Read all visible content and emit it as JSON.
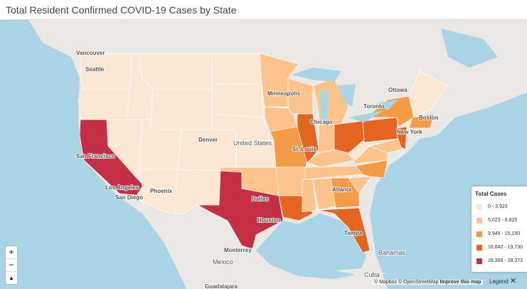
{
  "title": "Total Resident Confirmed COVID-19 Cases by State",
  "places": [
    "Vancouver",
    "Seattle",
    "Minneapolis",
    "Ottawa",
    "Toronto",
    "Boston",
    "Chicago",
    "New York",
    "St. Louis",
    "United States",
    "Denver",
    "San Francisco",
    "Los Angeles",
    "San Diego",
    "Phoenix",
    "Dallas",
    "Houston",
    "Atlanta",
    "Tampa",
    "Monterrey",
    "Mexico",
    "Bahamas",
    "Cuba",
    "Guadalajara"
  ],
  "legend": {
    "title": "Total Cases",
    "items": [
      {
        "label": "0 - 3,923",
        "color": "#fbe7d4"
      },
      {
        "label": "5,023 - 8,825",
        "color": "#fcc38a"
      },
      {
        "label": "9,949 - 15,150",
        "color": "#f59a45"
      },
      {
        "label": "16,842 - 19,730",
        "color": "#e5641f"
      },
      {
        "label": "26,369 - 28,373",
        "color": "#c42f45"
      }
    ]
  },
  "controls": {
    "zoom_in": "+",
    "zoom_out": "−"
  },
  "attribution": {
    "text": "© Mapbox © OpenStreetMap",
    "link": "Improve this map"
  },
  "legend_toggle": "Legend"
}
